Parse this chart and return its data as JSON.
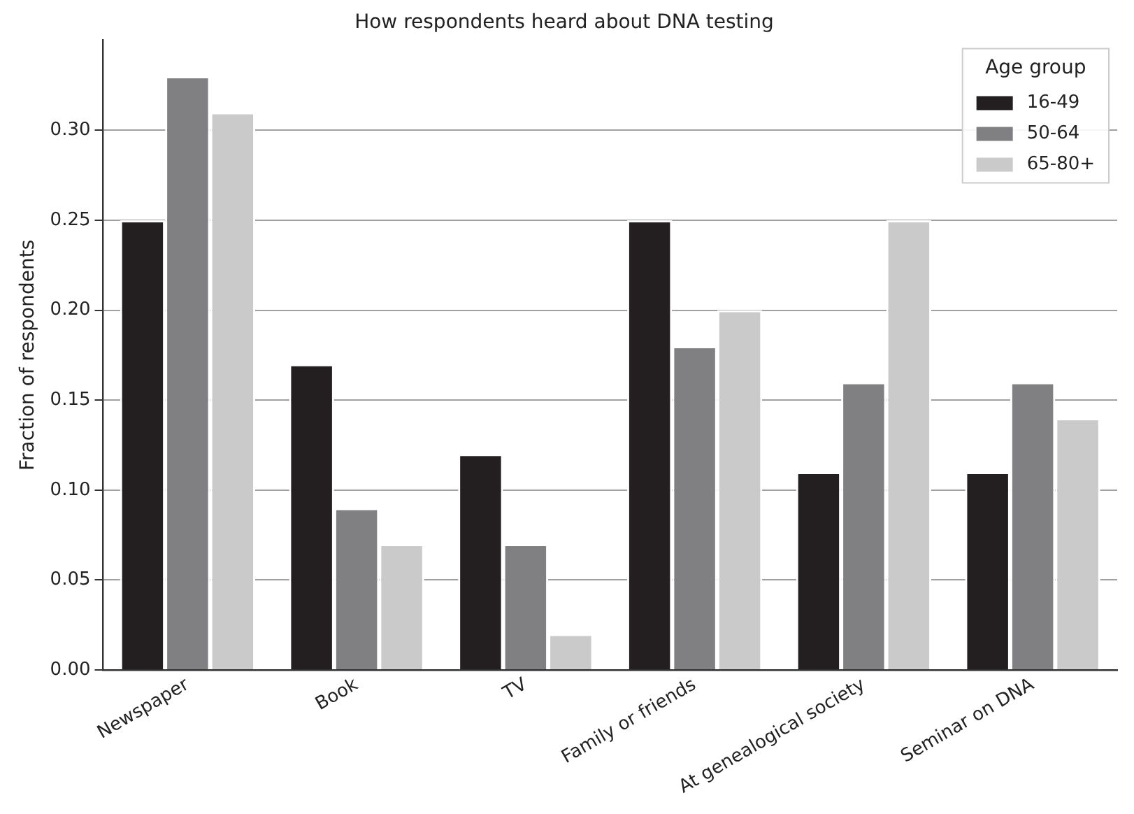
{
  "chart_data": {
    "type": "bar",
    "title": "How respondents heard about DNA testing",
    "ylabel": "Fraction of respondents",
    "legend_title": "Age group",
    "categories": [
      "Newspaper",
      "Book",
      "TV",
      "Family or friends",
      "At genealogical society",
      "Seminar on DNA"
    ],
    "series": [
      {
        "name": "16-49",
        "color": "#231f20",
        "values": [
          0.25,
          0.17,
          0.12,
          0.25,
          0.11,
          0.11
        ]
      },
      {
        "name": "50-64",
        "color": "#808082",
        "values": [
          0.33,
          0.09,
          0.07,
          0.18,
          0.16,
          0.16
        ]
      },
      {
        "name": "65-80+",
        "color": "#cacacb",
        "values": [
          0.31,
          0.07,
          0.02,
          0.2,
          0.25,
          0.14
        ]
      }
    ],
    "ylim": [
      0,
      0.35
    ],
    "yticks": [
      {
        "value": 0,
        "label": "0.00"
      },
      {
        "value": 0.05,
        "label": "0.05"
      },
      {
        "value": 0.1,
        "label": "0.10"
      },
      {
        "value": 0.15,
        "label": "0.15"
      },
      {
        "value": 0.2,
        "label": "0.20"
      },
      {
        "value": 0.25,
        "label": "0.25"
      },
      {
        "value": 0.3,
        "label": "0.30"
      }
    ],
    "grid": "y",
    "legend": "top right"
  }
}
